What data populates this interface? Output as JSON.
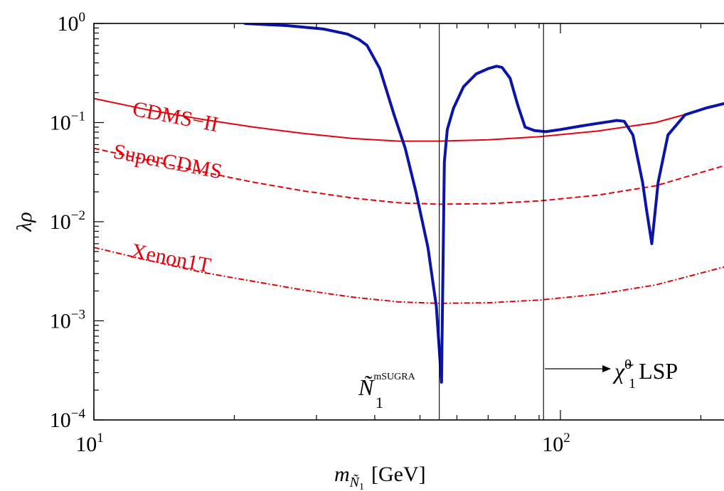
{
  "chart_data": {
    "type": "line",
    "x_scale": "log",
    "y_scale": "log",
    "xlim": [
      10,
      230
    ],
    "ylim": [
      0.0001,
      1
    ],
    "grid": false,
    "xlabel": {
      "base": "m",
      "sub1": "Ñ",
      "sub2": "1",
      "unit": "[GeV]"
    },
    "ylabel": "λρ",
    "x_ticks": [
      {
        "value": 10,
        "base": "10",
        "exp": "1"
      },
      {
        "value": 100,
        "base": "10",
        "exp": "2"
      }
    ],
    "y_ticks": [
      {
        "value": 1,
        "base": "10",
        "exp": "0"
      },
      {
        "value": 0.1,
        "base": "10",
        "exp": "−1"
      },
      {
        "value": 0.01,
        "base": "10",
        "exp": "−2"
      },
      {
        "value": 0.001,
        "base": "10",
        "exp": "−3"
      },
      {
        "value": 0.0001,
        "base": "10",
        "exp": "−4"
      }
    ],
    "colors": {
      "signal": "#0a14a8",
      "limits": "#e8000b",
      "vline": "#000000"
    },
    "series": [
      {
        "label": "CDMS−II",
        "style": "solid",
        "x": [
          10,
          13,
          17,
          22,
          28,
          36,
          45,
          55,
          70,
          90,
          120,
          160,
          230
        ],
        "y": [
          0.175,
          0.135,
          0.108,
          0.09,
          0.078,
          0.069,
          0.065,
          0.065,
          0.067,
          0.072,
          0.082,
          0.1,
          0.16
        ]
      },
      {
        "label": "SuperCDMS",
        "style": "dashed",
        "x": [
          10,
          13,
          17,
          22,
          28,
          36,
          45,
          55,
          70,
          90,
          120,
          160,
          230
        ],
        "y": [
          0.055,
          0.042,
          0.032,
          0.025,
          0.0205,
          0.0173,
          0.0155,
          0.015,
          0.0152,
          0.0162,
          0.0185,
          0.023,
          0.038
        ]
      },
      {
        "label": "Xenon1T",
        "style": "dashdot",
        "x": [
          10,
          13,
          17,
          22,
          28,
          36,
          45,
          55,
          70,
          90,
          120,
          160,
          230
        ],
        "y": [
          0.0055,
          0.0041,
          0.0031,
          0.0025,
          0.00205,
          0.00173,
          0.00155,
          0.0015,
          0.00152,
          0.00162,
          0.00185,
          0.0023,
          0.0036
        ]
      },
      {
        "style": "thick",
        "x": [
          21,
          26,
          31,
          35,
          37,
          38.5,
          41,
          44,
          46.5,
          49,
          52,
          54.2,
          55.6,
          56.4,
          57.2,
          59,
          62,
          66,
          70,
          73,
          75,
          78,
          81,
          84,
          88,
          93,
          100,
          110,
          120,
          127,
          132,
          137,
          143,
          150,
          153,
          157,
          162,
          170,
          185,
          205,
          230
        ],
        "y": [
          1.0,
          0.95,
          0.88,
          0.78,
          0.69,
          0.6,
          0.35,
          0.12,
          0.055,
          0.02,
          0.0055,
          0.0014,
          0.00024,
          0.04,
          0.085,
          0.14,
          0.23,
          0.31,
          0.35,
          0.37,
          0.36,
          0.28,
          0.15,
          0.09,
          0.083,
          0.081,
          0.085,
          0.092,
          0.098,
          0.102,
          0.105,
          0.103,
          0.075,
          0.025,
          0.013,
          0.006,
          0.025,
          0.075,
          0.12,
          0.14,
          0.16
        ]
      }
    ],
    "vlines": [
      55,
      92
    ],
    "annotations": {
      "nmsugra": {
        "base": "Ñ",
        "sup": "mSUGRA",
        "sub": "1"
      },
      "lsp": {
        "base": "χ̃",
        "sup": "0",
        "sub": "1",
        "suffix": "LSP"
      }
    }
  }
}
